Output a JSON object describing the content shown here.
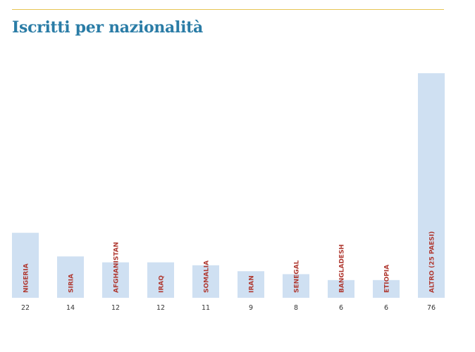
{
  "chart_data": {
    "type": "bar",
    "title": "Iscritti per nazionalità",
    "categories": [
      "NIGERIA",
      "SIRIA",
      "AFGHANISTAN",
      "IRAQ",
      "SOMALIA",
      "IRAN",
      "SENEGAL",
      "BANGLADESH",
      "ETIOPIA",
      "ALTRO (25 PAESI)"
    ],
    "values": [
      22,
      14,
      12,
      12,
      11,
      9,
      8,
      6,
      6,
      76
    ],
    "value_labels": [
      "22",
      "14",
      "12",
      "12",
      "11",
      "9",
      "8",
      "6",
      "6",
      "76"
    ],
    "ylim": [
      0,
      76
    ],
    "grid": false,
    "legend": "none",
    "colors": {
      "title": "#2a7ca6",
      "bar": "#cfe0f2",
      "category_label": "#b03a32",
      "rule": "#e7c452",
      "value_label": "#333333"
    }
  }
}
